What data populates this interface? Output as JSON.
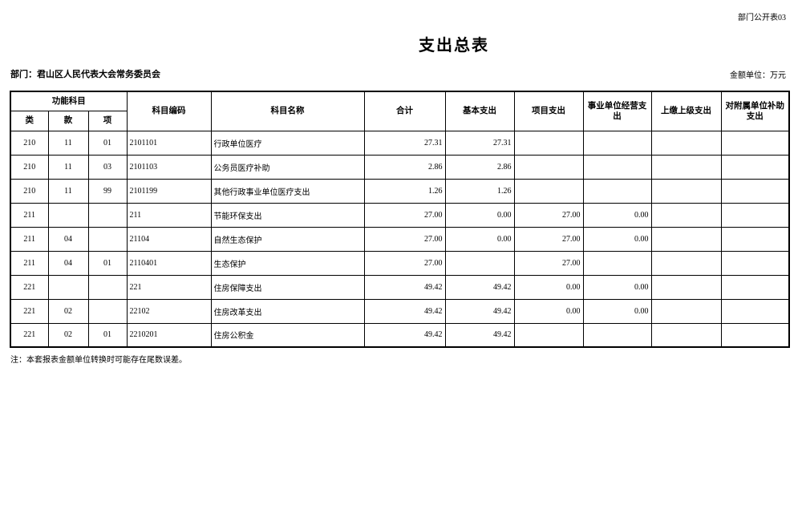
{
  "page": {
    "doc_ref": "部门公开表03",
    "title": "支出总表",
    "department_label": "部门：君山区人民代表大会常务委员会",
    "unit_label": "金额单位：万元",
    "note": "注：本套报表金额单位转换时可能存在尾数误差。"
  },
  "colors": {
    "background": "#ffffff",
    "text": "#000000",
    "border": "#000000"
  },
  "table": {
    "header": {
      "func_group": "功能科目",
      "func_cols": [
        "类",
        "款",
        "项"
      ],
      "cols": [
        "科目编码",
        "科目名称",
        "合计",
        "基本支出",
        "项目支出",
        "事业单位经营支出",
        "上缴上级支出",
        "对附属单位补助支出"
      ]
    },
    "rows": [
      {
        "class_code": "210",
        "section_code": "11",
        "item_code": "01",
        "subject_code": "2101101",
        "subject_name": "行政单位医疗",
        "indent": true,
        "total": "27.31",
        "basic": "27.31",
        "project": "",
        "operating": "",
        "upper_level": "",
        "subsidy": ""
      },
      {
        "class_code": "210",
        "section_code": "11",
        "item_code": "03",
        "subject_code": "2101103",
        "subject_name": "公务员医疗补助",
        "indent": true,
        "total": "2.86",
        "basic": "2.86",
        "project": "",
        "operating": "",
        "upper_level": "",
        "subsidy": ""
      },
      {
        "class_code": "210",
        "section_code": "11",
        "item_code": "99",
        "subject_code": "2101199",
        "subject_name": "其他行政事业单位医疗支出",
        "indent": true,
        "total": "1.26",
        "basic": "1.26",
        "project": "",
        "operating": "",
        "upper_level": "",
        "subsidy": ""
      },
      {
        "class_code": "211",
        "section_code": "",
        "item_code": "",
        "subject_code": "211",
        "subject_name": "节能环保支出",
        "indent": false,
        "total": "27.00",
        "basic": "0.00",
        "project": "27.00",
        "operating": "0.00",
        "upper_level": "",
        "subsidy": ""
      },
      {
        "class_code": "211",
        "section_code": "04",
        "item_code": "",
        "subject_code": "21104",
        "subject_name": "自然生态保护",
        "indent": false,
        "total": "27.00",
        "basic": "0.00",
        "project": "27.00",
        "operating": "0.00",
        "upper_level": "",
        "subsidy": ""
      },
      {
        "class_code": "211",
        "section_code": "04",
        "item_code": "01",
        "subject_code": "2110401",
        "subject_name": "生态保护",
        "indent": true,
        "total": "27.00",
        "basic": "",
        "project": "27.00",
        "operating": "",
        "upper_level": "",
        "subsidy": ""
      },
      {
        "class_code": "221",
        "section_code": "",
        "item_code": "",
        "subject_code": "221",
        "subject_name": "住房保障支出",
        "indent": false,
        "total": "49.42",
        "basic": "49.42",
        "project": "0.00",
        "operating": "0.00",
        "upper_level": "",
        "subsidy": ""
      },
      {
        "class_code": "221",
        "section_code": "02",
        "item_code": "",
        "subject_code": "22102",
        "subject_name": "住房改革支出",
        "indent": false,
        "total": "49.42",
        "basic": "49.42",
        "project": "0.00",
        "operating": "0.00",
        "upper_level": "",
        "subsidy": ""
      },
      {
        "class_code": "221",
        "section_code": "02",
        "item_code": "01",
        "subject_code": "2210201",
        "subject_name": "住房公积金",
        "indent": true,
        "total": "49.42",
        "basic": "49.42",
        "project": "",
        "operating": "",
        "upper_level": "",
        "subsidy": ""
      }
    ]
  }
}
